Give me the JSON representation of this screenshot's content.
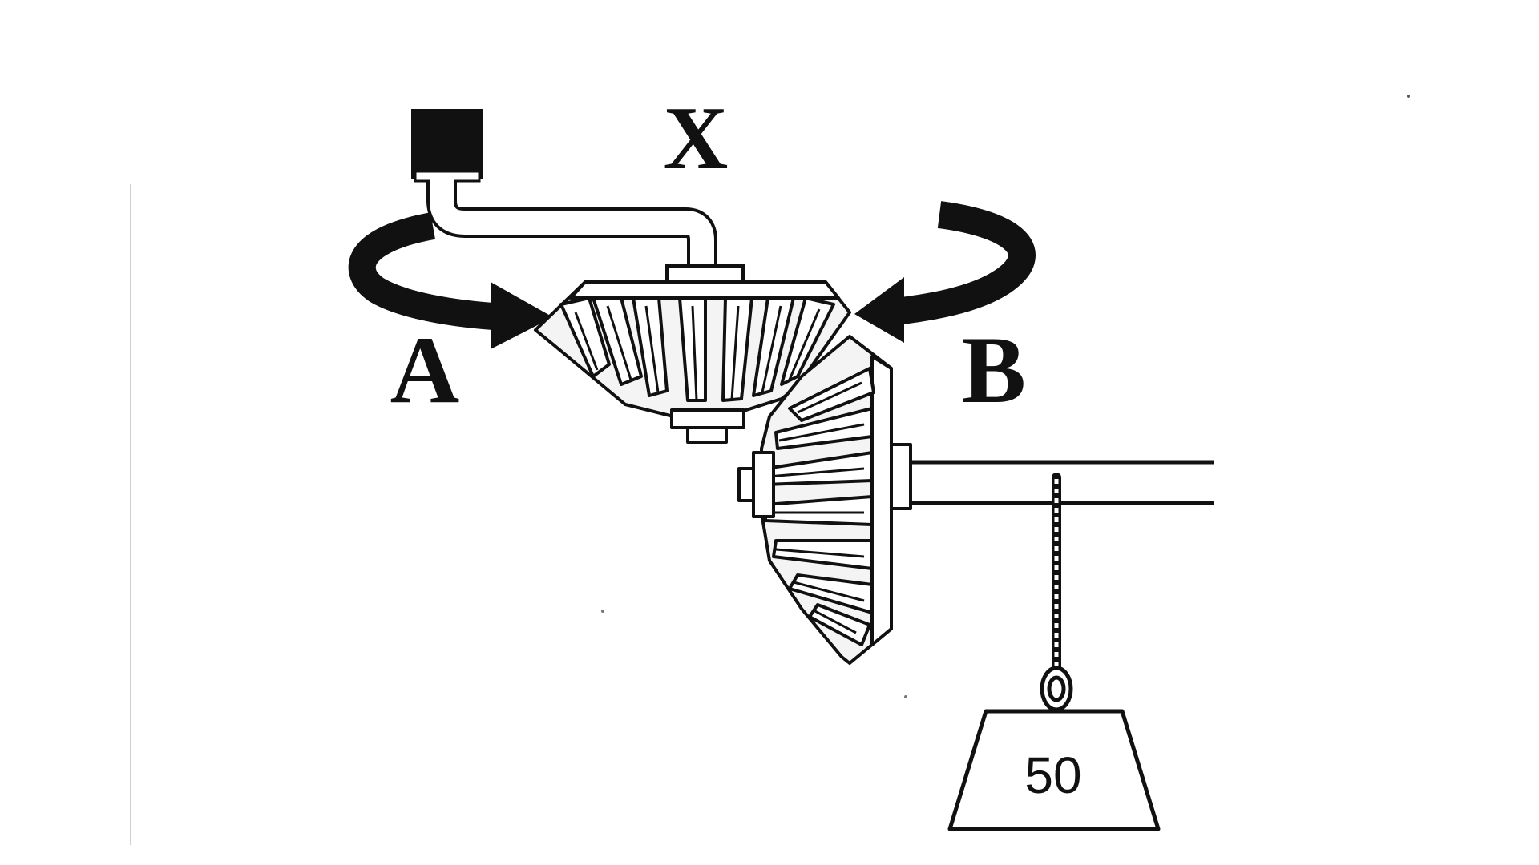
{
  "labels": {
    "crank": "X",
    "direction_a": "A",
    "direction_b": "B",
    "weight": "50"
  },
  "colors": {
    "ink": "#111111",
    "paper": "#ffffff",
    "face": "#f4f4f4",
    "shade": "#d2d2d2"
  }
}
